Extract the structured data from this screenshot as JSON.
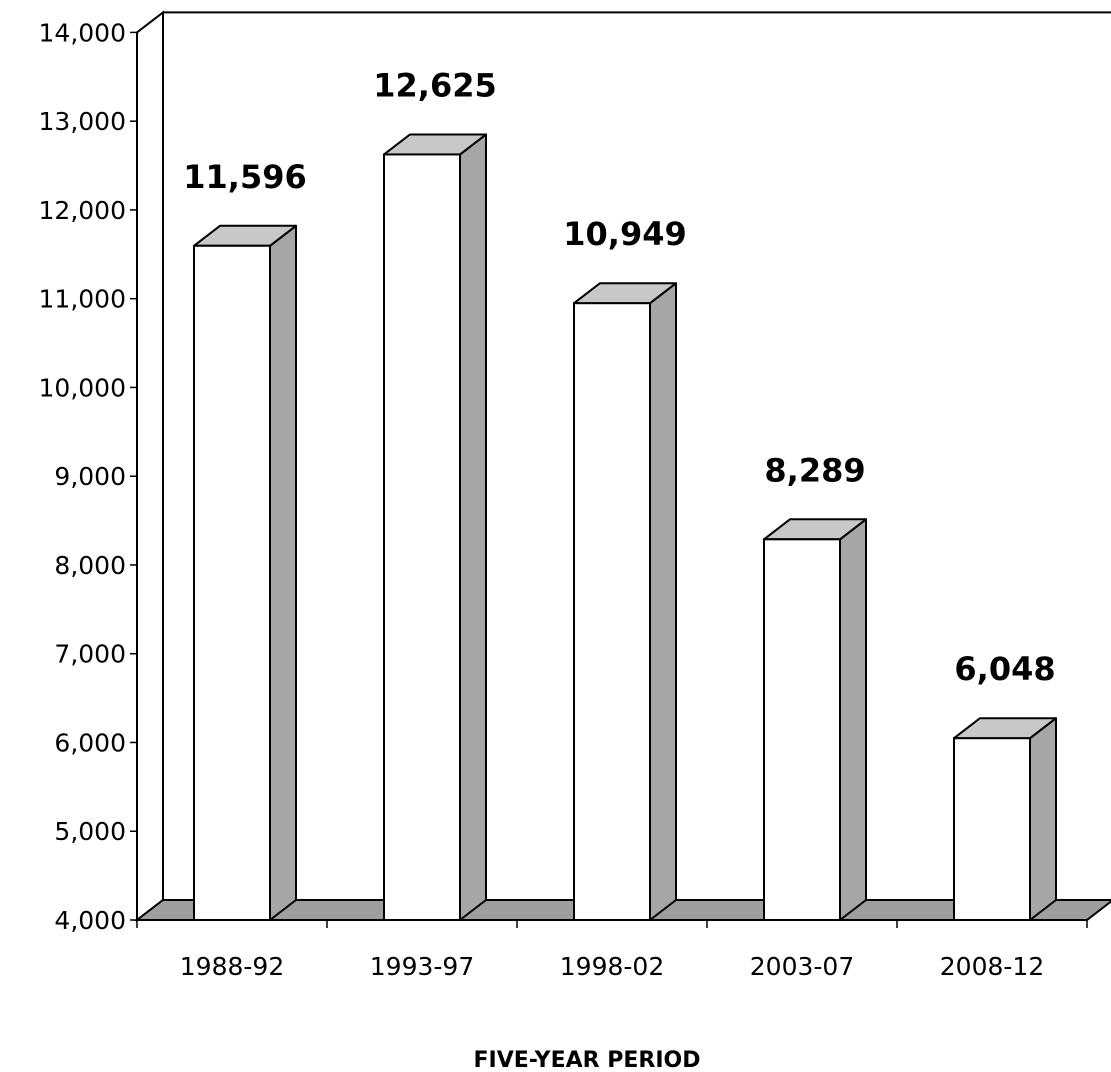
{
  "chart_data": {
    "type": "bar",
    "categories": [
      "1988-92",
      "1993-97",
      "1998-02",
      "2003-07",
      "2008-12"
    ],
    "values": [
      11596,
      12625,
      10949,
      8289,
      6048
    ],
    "value_labels": [
      "11,596",
      "12,625",
      "10,949",
      "8,289",
      "6,048"
    ],
    "title": "",
    "xlabel": "FIVE-YEAR PERIOD",
    "ylabel": "",
    "ylim": [
      4000,
      14000
    ],
    "yticks": [
      4000,
      5000,
      6000,
      7000,
      8000,
      9000,
      10000,
      11000,
      12000,
      13000,
      14000
    ],
    "ytick_labels": [
      "4,000",
      "5,000",
      "6,000",
      "7,000",
      "8,000",
      "9,000",
      "10,000",
      "11,000",
      "12,000",
      "13,000",
      "14,000"
    ],
    "style": "3d-column",
    "grid": false,
    "legend": "none",
    "colors": {
      "bar_front": "#ffffff",
      "bar_top": "#c8c8c8",
      "bar_side": "#a6a6a6",
      "floor": "#9e9e9e",
      "outline": "#000000"
    }
  }
}
